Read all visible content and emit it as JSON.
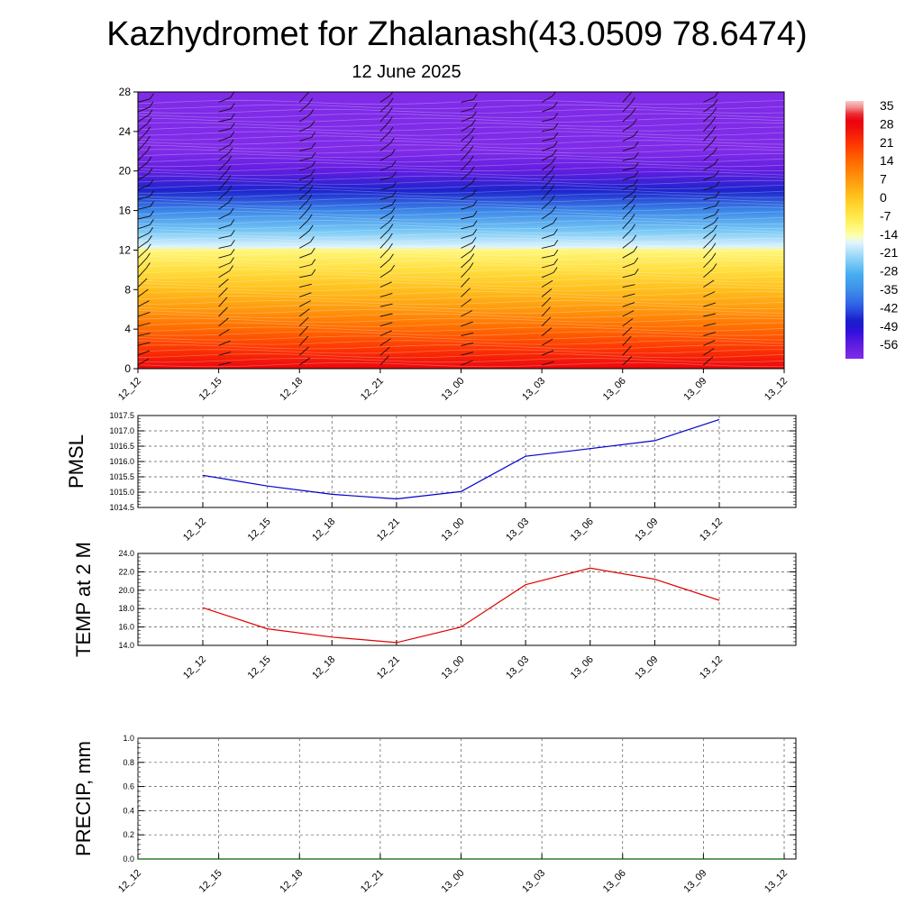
{
  "title": "Kazhydromet for Zhalanash(43.0509 78.6474)",
  "subtitle": "12 June 2025",
  "colors": {
    "pmsl_line": "#0000cc",
    "temp_line": "#e00000",
    "precip_line": "#006400",
    "grid": "#555555"
  },
  "chart_data": [
    {
      "type": "heatmap",
      "name": "cross-section",
      "x": [
        "12_12",
        "12_15",
        "12_18",
        "12_21",
        "13_00",
        "13_03",
        "13_06",
        "13_09",
        "13_12"
      ],
      "yticks": [
        0,
        4,
        8,
        12,
        16,
        20,
        24,
        28
      ],
      "ylim": [
        0,
        28
      ],
      "colorbar": {
        "labels": [
          35,
          28,
          21,
          14,
          7,
          0,
          -7,
          -14,
          -21,
          -28,
          -35,
          -42,
          -49,
          -56
        ],
        "range": [
          -60,
          38
        ]
      },
      "temperature_profile": {
        "height": [
          0,
          2,
          4,
          6,
          8,
          10,
          12,
          12.3,
          14,
          16,
          18,
          20,
          22,
          24,
          28
        ],
        "temp": [
          30,
          22,
          15,
          8,
          2,
          -4,
          -10,
          -16,
          -24,
          -35,
          -45,
          -55,
          -62,
          -70,
          -72
        ]
      },
      "wind_barbs": "present"
    },
    {
      "type": "line",
      "ylabel": "PMSL",
      "x": [
        "12_12",
        "12_15",
        "12_18",
        "12_21",
        "13_00",
        "13_03",
        "13_06",
        "13_09",
        "13_12"
      ],
      "values": [
        1015.55,
        1015.2,
        1014.93,
        1014.78,
        1015.02,
        1016.17,
        1016.42,
        1016.68,
        1017.37
      ],
      "ylim": [
        1014.5,
        1017.5
      ],
      "yticks": [
        "1014.5",
        "1015.0",
        "1015.5",
        "1016.0",
        "1016.5",
        "1017.0",
        "1017.5"
      ]
    },
    {
      "type": "line",
      "ylabel": "TEMP at 2 M",
      "x": [
        "12_12",
        "12_15",
        "12_18",
        "12_21",
        "13_00",
        "13_03",
        "13_06",
        "13_09",
        "13_12"
      ],
      "values": [
        18.1,
        15.8,
        14.9,
        14.3,
        16.0,
        20.6,
        22.4,
        21.2,
        18.9
      ],
      "ylim": [
        14.0,
        24.0
      ],
      "yticks": [
        "14.0",
        "16.0",
        "18.0",
        "20.0",
        "22.0",
        "24.0"
      ]
    },
    {
      "type": "line",
      "ylabel": "PRECIP, mm",
      "x": [
        "12_12",
        "12_15",
        "12_18",
        "12_21",
        "13_00",
        "13_03",
        "13_06",
        "13_09",
        "13_12"
      ],
      "values": [
        0,
        0,
        0,
        0,
        0,
        0,
        0,
        0,
        0
      ],
      "ylim": [
        0.0,
        1.0
      ],
      "yticks": [
        "0.0",
        "0.2",
        "0.4",
        "0.6",
        "0.8",
        "1.0"
      ]
    }
  ]
}
